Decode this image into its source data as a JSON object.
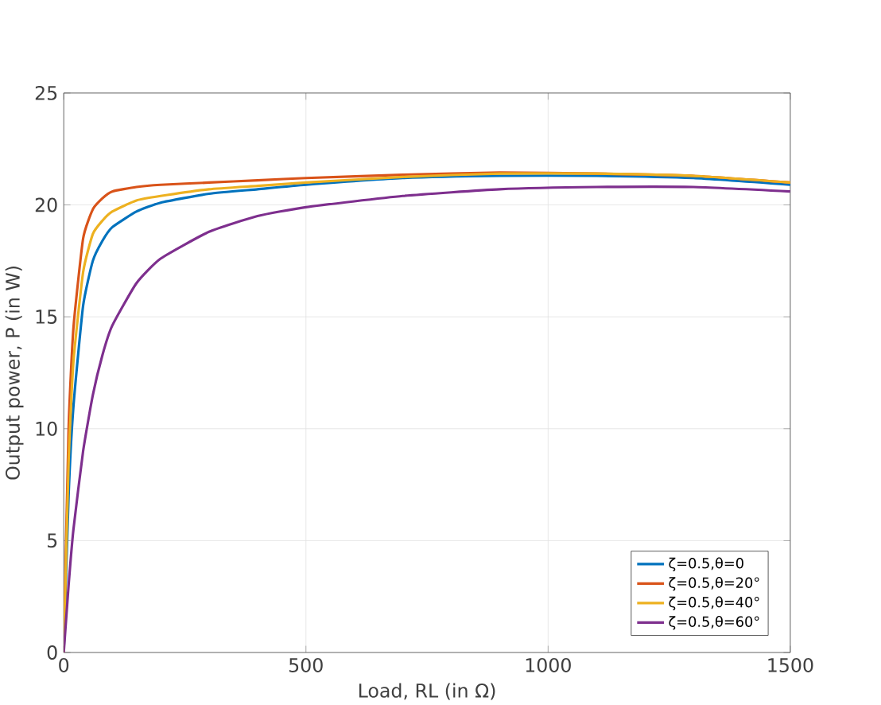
{
  "chart_data": {
    "type": "line",
    "xlabel": "Load, RL (in Ω)",
    "ylabel": "Output power, P (in W)",
    "xlim": [
      0,
      1500
    ],
    "xticks": [
      0,
      500,
      1000,
      1500
    ],
    "ylim": [
      0,
      25
    ],
    "yticks": [
      0,
      5,
      10,
      15,
      20,
      25
    ],
    "grid": true,
    "legend": "bottom right",
    "line_style": "solid",
    "marker": "none",
    "x": [
      0,
      10,
      20,
      40,
      60,
      80,
      100,
      150,
      200,
      300,
      400,
      500,
      700,
      900,
      1100,
      1300,
      1500
    ],
    "series": [
      {
        "name": "ζ=0.5,θ=0",
        "color": "#0072bd",
        "values": [
          0,
          7,
          11,
          15.5,
          17.5,
          18.4,
          19,
          19.7,
          20.1,
          20.5,
          20.7,
          20.9,
          21.2,
          21.3,
          21.3,
          21.2,
          20.9
        ]
      },
      {
        "name": "ζ=0.5,θ=20°",
        "color": "#d95319",
        "values": [
          0,
          10,
          14.5,
          18.5,
          19.8,
          20.3,
          20.6,
          20.8,
          20.9,
          21.0,
          21.1,
          21.2,
          21.35,
          21.45,
          21.4,
          21.3,
          21.0
        ]
      },
      {
        "name": "ζ=0.5,θ=40°",
        "color": "#edb120",
        "values": [
          0,
          8.5,
          13,
          17,
          18.7,
          19.3,
          19.7,
          20.2,
          20.4,
          20.7,
          20.85,
          21.0,
          21.25,
          21.4,
          21.4,
          21.3,
          21.0
        ]
      },
      {
        "name": "ζ=0.5,θ=60°",
        "color": "#7e2f8e",
        "values": [
          0,
          3,
          5.5,
          9,
          11.5,
          13.3,
          14.6,
          16.5,
          17.6,
          18.8,
          19.5,
          19.9,
          20.4,
          20.7,
          20.8,
          20.8,
          20.6
        ]
      }
    ]
  }
}
